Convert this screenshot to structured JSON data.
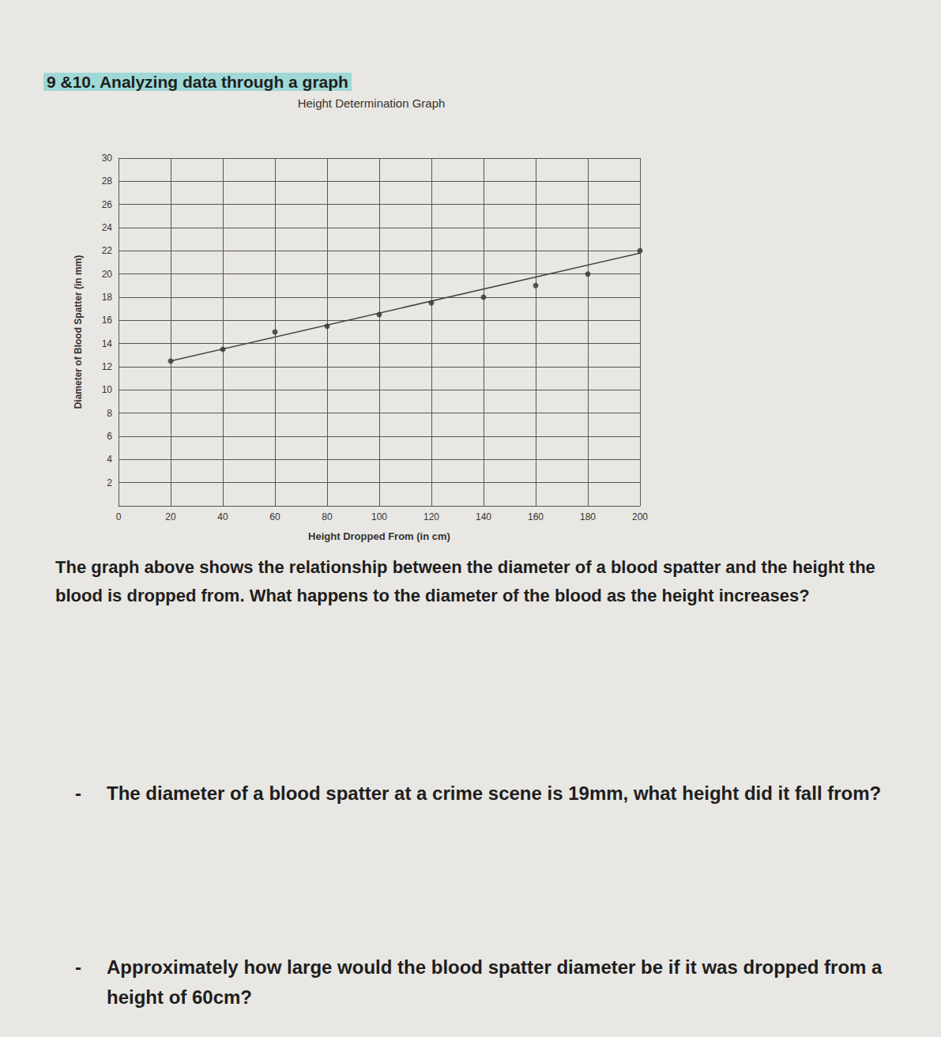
{
  "header": "9 &10. Analyzing data through a graph",
  "chart_data": {
    "type": "scatter",
    "title": "Height Determination Graph",
    "x_label": "Height Dropped From (in cm)",
    "y_label": "Diameter of Blood Spatter (in mm)",
    "x": [
      20,
      40,
      60,
      80,
      100,
      120,
      140,
      160,
      180,
      200
    ],
    "series": [
      {
        "type": "scatter",
        "color": "#333333",
        "marker": "circle",
        "values": [
          12.5,
          13.5,
          15,
          15.5,
          16.5,
          17.5,
          18,
          19,
          20,
          22
        ]
      },
      {
        "type": "line",
        "color": "#444444",
        "line_style": "solid",
        "x": [
          20,
          200
        ],
        "values": [
          12.5,
          21.8
        ]
      }
    ],
    "xlim": [
      0,
      200
    ],
    "xticks": [
      0,
      20,
      40,
      60,
      80,
      100,
      120,
      140,
      160,
      180,
      200
    ],
    "ylim": [
      0,
      30
    ],
    "yticks": [
      2,
      4,
      6,
      8,
      10,
      12,
      14,
      16,
      18,
      20,
      22,
      24,
      26,
      28,
      30
    ],
    "grid": true
  },
  "questions": [
    {
      "text": "The graph above shows the relationship between the diameter of a blood spatter and the height the blood is dropped from. What happens to the diameter of the blood as the height increases?"
    },
    {
      "bullet": "-",
      "text": "The diameter of a blood spatter at a crime scene is 19mm, what height did it fall from?"
    },
    {
      "bullet": "-",
      "text": "Approximately how large would the blood spatter diameter be if it was dropped from a height of 60cm?"
    }
  ]
}
